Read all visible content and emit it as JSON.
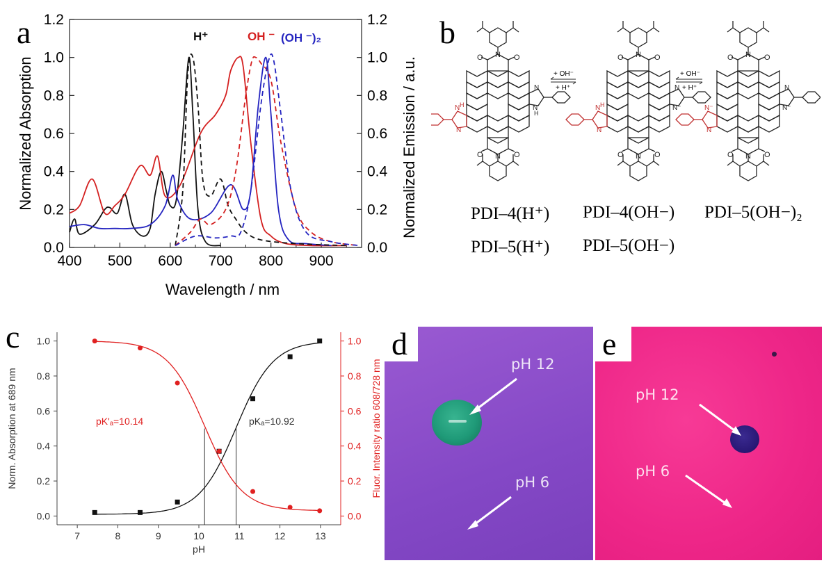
{
  "panels": {
    "a": "a",
    "b": "b",
    "c": "c",
    "d": "d",
    "e": "e"
  },
  "panel_b": {
    "arrow1_top": "+ OH⁻",
    "arrow1_bottom": "+ H⁺",
    "arrow2_top": "+ OH⁻",
    "arrow2_bottom": "+ H⁺",
    "label_1": "PDI–4(H⁺)",
    "label_2": "PDI–4(OH−)",
    "label_3": "PDI–5(OH−)₂",
    "label_4": "PDI–5(H⁺)",
    "label_5": "PDI–5(OH−)"
  },
  "panel_d": {
    "label_top": "pH 12",
    "label_bottom": "pH 6"
  },
  "panel_e": {
    "label_top": "pH 12",
    "label_bottom": "pH 6"
  },
  "colors": {
    "black": "#111111",
    "red": "#d42020",
    "blue": "#2424c0",
    "purple_bg": "#8a4fc8",
    "pink_bg": "#f0288a",
    "green_drop": "#1f9a78",
    "blue_drop": "#2a1a78"
  },
  "chart_data": [
    {
      "type": "line",
      "xlabel": "Wavelength / nm",
      "ylabel": "Normalized Absorption",
      "y2label": "Normalized Emission / a.u.",
      "xlim": [
        400,
        980
      ],
      "ylim": [
        0,
        1.2
      ],
      "y2lim": [
        0,
        1.2
      ],
      "xticks": [
        400,
        500,
        600,
        700,
        800,
        900
      ],
      "yticks": [
        "0.0",
        "0.2",
        "0.4",
        "0.6",
        "0.8",
        "1.0",
        "1.2"
      ],
      "legend_labels": {
        "h": "H⁺",
        "oh": "OH ⁻",
        "oh2": "(OH ⁻)₂"
      },
      "grid": false,
      "series": [
        {
          "name": "H⁺",
          "style": "solid",
          "color": "#111111",
          "x": [
            400,
            410,
            420,
            450,
            470,
            480,
            495,
            510,
            525,
            545,
            560,
            570,
            582,
            592,
            600,
            612,
            625,
            637,
            645,
            655,
            670,
            700
          ],
          "y": [
            0.08,
            0.15,
            0.07,
            0.12,
            0.2,
            0.21,
            0.18,
            0.28,
            0.12,
            0.06,
            0.1,
            0.28,
            0.4,
            0.3,
            0.22,
            0.25,
            0.6,
            1.0,
            0.7,
            0.2,
            0.03,
            0.01
          ]
        },
        {
          "name": "OH ⁻",
          "style": "solid",
          "color": "#d42020",
          "x": [
            400,
            420,
            445,
            470,
            490,
            510,
            540,
            560,
            575,
            590,
            620,
            660,
            690,
            710,
            720,
            735,
            745,
            760,
            780,
            800,
            830,
            880,
            950
          ],
          "y": [
            0.18,
            0.22,
            0.36,
            0.18,
            0.22,
            0.28,
            0.43,
            0.38,
            0.48,
            0.27,
            0.33,
            0.6,
            0.7,
            0.8,
            0.93,
            1.0,
            0.95,
            0.55,
            0.15,
            0.06,
            0.02,
            0.01,
            0.01
          ]
        },
        {
          "name": "(OH ⁻)₂",
          "style": "solid",
          "color": "#2424c0",
          "x": [
            400,
            430,
            460,
            490,
            520,
            560,
            590,
            605,
            615,
            640,
            680,
            720,
            745,
            760,
            775,
            790,
            800,
            815,
            835,
            870,
            920
          ],
          "y": [
            0.11,
            0.12,
            0.1,
            0.1,
            0.1,
            0.12,
            0.22,
            0.38,
            0.25,
            0.15,
            0.18,
            0.33,
            0.2,
            0.3,
            0.75,
            1.0,
            0.7,
            0.2,
            0.04,
            0.02,
            0.01
          ]
        },
        {
          "name": "H⁺ emission",
          "style": "dashed",
          "color": "#111111",
          "x": [
            610,
            625,
            635,
            645,
            655,
            665,
            680,
            700,
            715,
            730,
            750,
            780,
            850,
            950
          ],
          "y": [
            0.01,
            0.3,
            0.92,
            1.0,
            0.75,
            0.35,
            0.27,
            0.36,
            0.22,
            0.15,
            0.08,
            0.04,
            0.02,
            0.01
          ]
        },
        {
          "name": "OH ⁻ emission",
          "style": "dashed",
          "color": "#d42020",
          "x": [
            610,
            640,
            660,
            680,
            710,
            730,
            750,
            762,
            770,
            780,
            800,
            820,
            850,
            880,
            920,
            975
          ],
          "y": [
            0.01,
            0.08,
            0.15,
            0.12,
            0.2,
            0.4,
            0.8,
            0.98,
            1.0,
            0.97,
            0.88,
            0.55,
            0.2,
            0.08,
            0.03,
            0.01
          ]
        },
        {
          "name": "(OH ⁻)₂ emission",
          "style": "dashed",
          "color": "#2424c0",
          "x": [
            610,
            650,
            690,
            720,
            740,
            760,
            780,
            795,
            805,
            820,
            840,
            870,
            920,
            975
          ],
          "y": [
            0.01,
            0.06,
            0.05,
            0.06,
            0.08,
            0.3,
            0.75,
            0.98,
            0.99,
            0.7,
            0.3,
            0.08,
            0.03,
            0.01
          ]
        }
      ]
    },
    {
      "type": "scatter",
      "xlabel": "pH",
      "ylabel": "Norm. Absorption at 689 nm",
      "y2label": "Fluor. Intensity ratio 608/728 nm",
      "xlim": [
        6.5,
        13.5
      ],
      "ylim": [
        -0.05,
        1.05
      ],
      "xticks": [
        7,
        8,
        9,
        10,
        11,
        12,
        13
      ],
      "yticks": [
        "0.0",
        "0.2",
        "0.4",
        "0.6",
        "0.8",
        "1.0"
      ],
      "annotations": {
        "pka_red": "pK'ₐ=10.14",
        "pka_black": "pKₐ=10.92"
      },
      "pka_lines": [
        10.14,
        10.92
      ],
      "series": [
        {
          "name": "Absorption",
          "color": "#111111",
          "marker": "square",
          "x": [
            7.43,
            8.55,
            9.47,
            10.5,
            11.33,
            12.25,
            12.98
          ],
          "y": [
            0.02,
            0.02,
            0.08,
            0.37,
            0.67,
            0.91,
            1.0
          ]
        },
        {
          "name": "Fluorescence ratio",
          "color": "#e02020",
          "marker": "circle",
          "x": [
            7.43,
            8.55,
            9.47,
            10.5,
            11.33,
            12.25,
            12.98
          ],
          "y": [
            1.0,
            0.96,
            0.76,
            0.37,
            0.14,
            0.05,
            0.03
          ]
        }
      ]
    }
  ]
}
